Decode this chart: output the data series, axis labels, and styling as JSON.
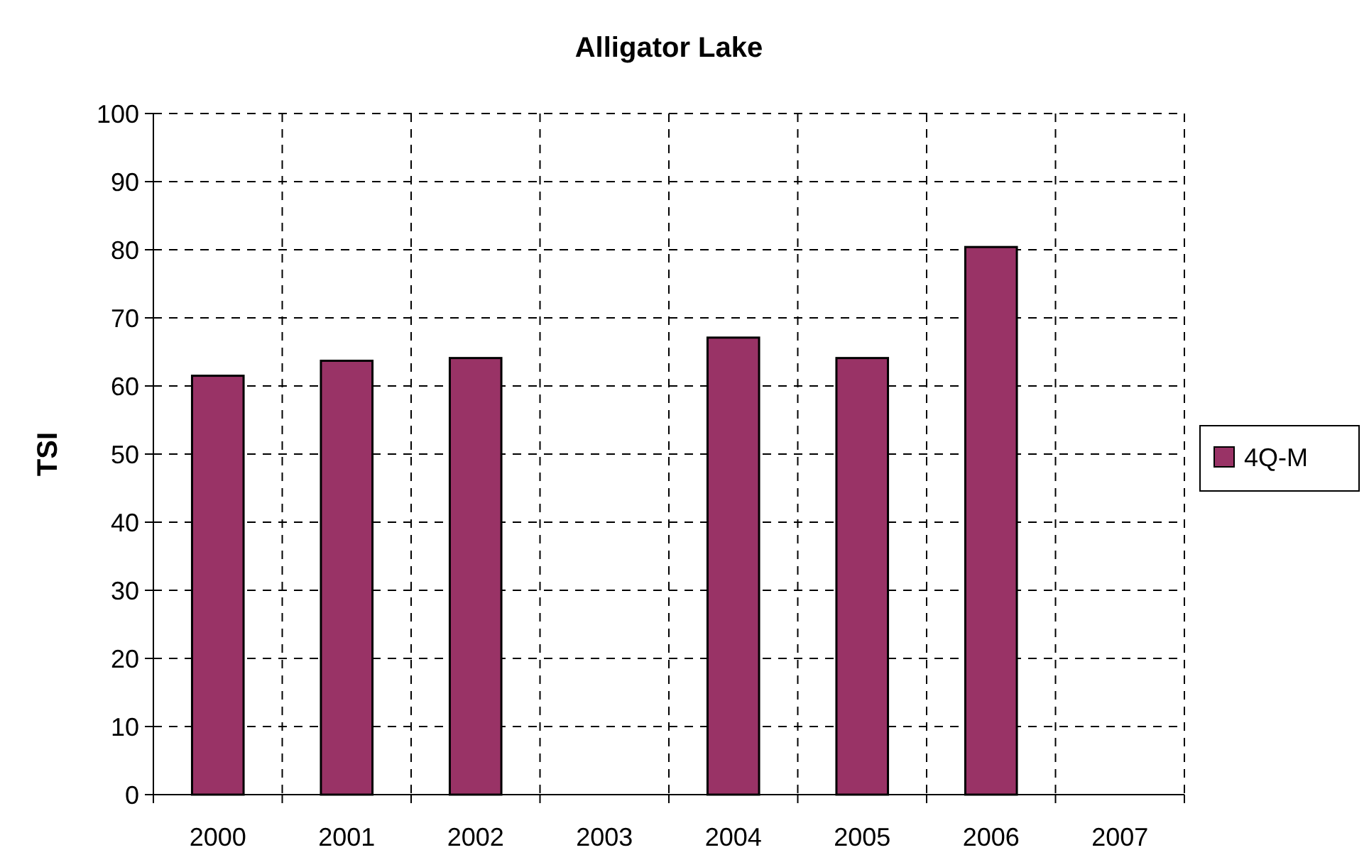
{
  "chart_data": {
    "type": "bar",
    "title": "Alligator Lake",
    "ylabel": "TSI",
    "categories": [
      "2000",
      "2001",
      "2002",
      "2003",
      "2004",
      "2005",
      "2006",
      "2007"
    ],
    "series": [
      {
        "name": "4Q-M",
        "color": "#993366",
        "values": [
          61.5,
          63.7,
          64.1,
          null,
          67.1,
          64.1,
          80.4,
          null
        ]
      }
    ],
    "ylim": [
      0,
      100
    ],
    "yticks": [
      0,
      10,
      20,
      30,
      40,
      50,
      60,
      70,
      80,
      90,
      100
    ],
    "grid": true,
    "legend": "right"
  }
}
